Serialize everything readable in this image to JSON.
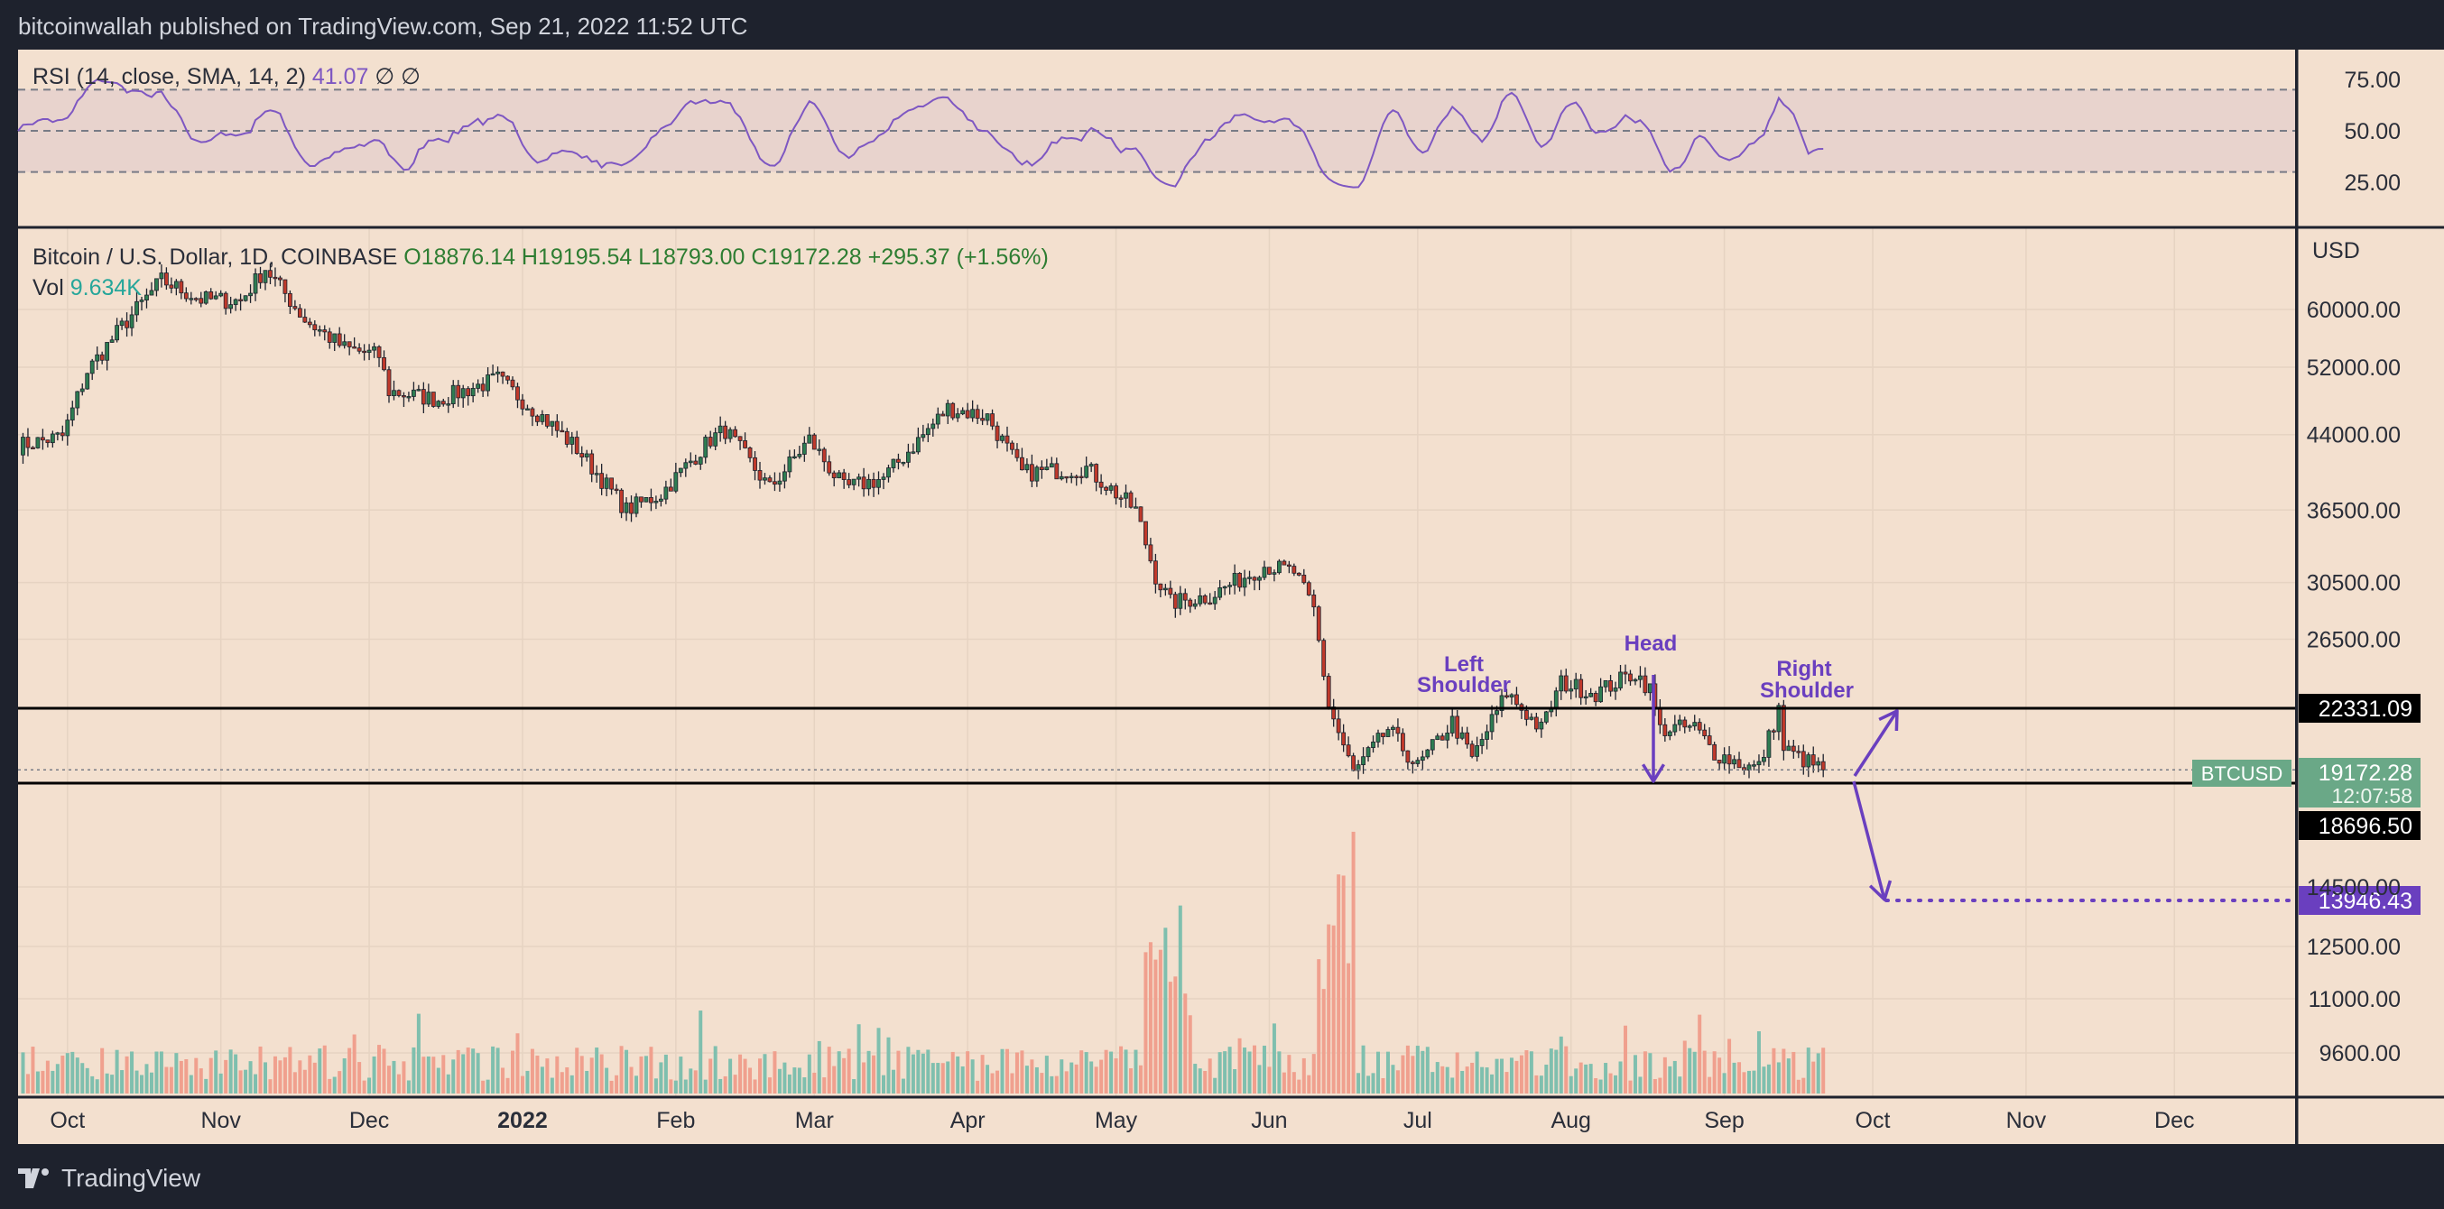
{
  "header": {
    "publisher_line": "bitcoinwallah published on TradingView.com, Sep 21, 2022 11:52 UTC"
  },
  "footer": {
    "brand": "TradingView"
  },
  "rsi_legend": {
    "label": "RSI (14, close, SMA, 14, 2)",
    "value": "41.07",
    "icons": "∅  ∅"
  },
  "main_legend": {
    "symbol": "Bitcoin / U.S. Dollar, 1D, COINBASE",
    "open": "O18876.14",
    "high": "H19195.54",
    "low": "L18793.00",
    "close": "C19172.28",
    "change": "+295.37 (+1.56%)",
    "vol_label": "Vol",
    "vol_value": "9.634K"
  },
  "colors": {
    "background": "#f3e0cf",
    "up": "#2e7d52",
    "down": "#c0392b",
    "rsi_line": "#7e57c2",
    "annotation": "#6a3fbf",
    "vol_up": "#7fbfae",
    "vol_down": "#f0a08e"
  },
  "chart_data": {
    "type": "candlestick",
    "price_scale": "log",
    "currency_label": "USD",
    "x_ticks": [
      "Oct",
      "Nov",
      "Dec",
      "2022",
      "Feb",
      "Mar",
      "Apr",
      "May",
      "Jun",
      "Jul",
      "Aug",
      "Sep",
      "Oct",
      "Nov",
      "Dec"
    ],
    "y_ticks": [
      "60000.00",
      "52000.00",
      "44000.00",
      "36500.00",
      "30500.00",
      "26500.00",
      "14500.00",
      "12500.00",
      "11000.00",
      "9600.00"
    ],
    "rsi_ticks": [
      "75.00",
      "50.00",
      "25.00"
    ],
    "rsi_band": [
      30,
      70
    ],
    "close_path": [
      [
        "2021-09-21",
        42800
      ],
      [
        "2021-09-30",
        43800
      ],
      [
        "2021-10-05",
        51500
      ],
      [
        "2021-10-12",
        57500
      ],
      [
        "2021-10-20",
        64500
      ],
      [
        "2021-10-28",
        61500
      ],
      [
        "2021-11-05",
        61300
      ],
      [
        "2021-11-10",
        66500
      ],
      [
        "2021-11-18",
        58500
      ],
      [
        "2021-11-26",
        54500
      ],
      [
        "2021-12-03",
        53500
      ],
      [
        "2021-12-05",
        49000
      ],
      [
        "2021-12-15",
        48000
      ],
      [
        "2021-12-27",
        50500
      ],
      [
        "2022-01-05",
        46000
      ],
      [
        "2022-01-12",
        42500
      ],
      [
        "2022-01-22",
        36500
      ],
      [
        "2022-01-29",
        38000
      ],
      [
        "2022-02-08",
        43500
      ],
      [
        "2022-02-11",
        44500
      ],
      [
        "2022-02-20",
        38500
      ],
      [
        "2022-02-28",
        43500
      ],
      [
        "2022-03-07",
        38500
      ],
      [
        "2022-03-15",
        39500
      ],
      [
        "2022-03-28",
        47000
      ],
      [
        "2022-04-05",
        46000
      ],
      [
        "2022-04-12",
        40000
      ],
      [
        "2022-04-25",
        40500
      ],
      [
        "2022-05-05",
        36500
      ],
      [
        "2022-05-09",
        31000
      ],
      [
        "2022-05-12",
        29000
      ],
      [
        "2022-05-20",
        29500
      ],
      [
        "2022-05-31",
        31800
      ],
      [
        "2022-06-06",
        31300
      ],
      [
        "2022-06-10",
        28500
      ],
      [
        "2022-06-13",
        22500
      ],
      [
        "2022-06-18",
        19000
      ],
      [
        "2022-06-25",
        21200
      ],
      [
        "2022-07-01",
        19300
      ],
      [
        "2022-07-08",
        21600
      ],
      [
        "2022-07-12",
        19700
      ],
      [
        "2022-07-19",
        23200
      ],
      [
        "2022-07-26",
        21200
      ],
      [
        "2022-07-30",
        23800
      ],
      [
        "2022-08-06",
        23200
      ],
      [
        "2022-08-14",
        24400
      ],
      [
        "2022-08-17",
        23400
      ],
      [
        "2022-08-19",
        21200
      ],
      [
        "2022-08-26",
        21300
      ],
      [
        "2022-08-30",
        20000
      ],
      [
        "2022-09-06",
        19300
      ],
      [
        "2022-09-08",
        19300
      ],
      [
        "2022-09-12",
        22300
      ],
      [
        "2022-09-13",
        20200
      ],
      [
        "2022-09-19",
        19400
      ],
      [
        "2022-09-21",
        19172
      ]
    ],
    "last_price": {
      "label": "BTCUSD",
      "value": "19172.28",
      "countdown": "12:07:58"
    },
    "levels": [
      {
        "name": "resistance",
        "value": 22331.09,
        "label": "22331.09"
      },
      {
        "name": "neckline",
        "value": 18696.5,
        "label": "18696.50"
      },
      {
        "name": "target",
        "value": 13946.43,
        "label": "13946.43"
      }
    ],
    "annotations": [
      "Left",
      "Shoulder",
      "Head",
      "Right",
      "Shoulder"
    ]
  }
}
